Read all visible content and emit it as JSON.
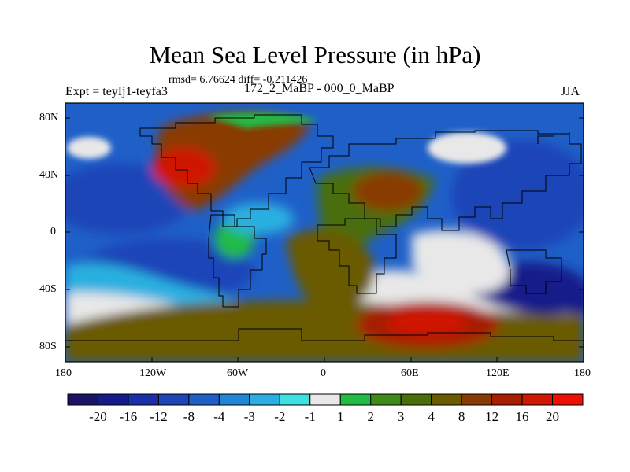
{
  "title": "Mean Sea Level Pressure (in hPa)",
  "stats": "rmsd= 6.76624 diff= -0.211426",
  "experiment": "Expt = teyIj1-teyfa3",
  "period_range": "172_2_MaBP - 000_0_MaBP",
  "season": "JJA",
  "axes": {
    "lat_ticks": [
      "80N",
      "40N",
      "0",
      "40S",
      "80S"
    ],
    "lon_ticks": [
      "180",
      "120W",
      "60W",
      "0",
      "60E",
      "120E",
      "180"
    ]
  },
  "colorbar": {
    "labels": [
      "-20",
      "-16",
      "-12",
      "-8",
      "-4",
      "-3",
      "-2",
      "-1",
      "1",
      "2",
      "3",
      "4",
      "8",
      "12",
      "16",
      "20"
    ],
    "colors": [
      "#1b1464",
      "#141b8a",
      "#1a2fa8",
      "#1e44b8",
      "#1f60c8",
      "#1f86d8",
      "#2ab0e0",
      "#40e0e0",
      "#e8e8e8",
      "#22bb44",
      "#3d8a1a",
      "#4a6e0a",
      "#6a5a00",
      "#8a3a00",
      "#a81e00",
      "#d01800",
      "#ee1000"
    ]
  },
  "colors": {
    "ocean_deep": "#1e44b8",
    "ocean": "#1f60c8",
    "land_high": "#d01800",
    "land_mid": "#8a3a00",
    "neutral": "#e8e8e8"
  }
}
